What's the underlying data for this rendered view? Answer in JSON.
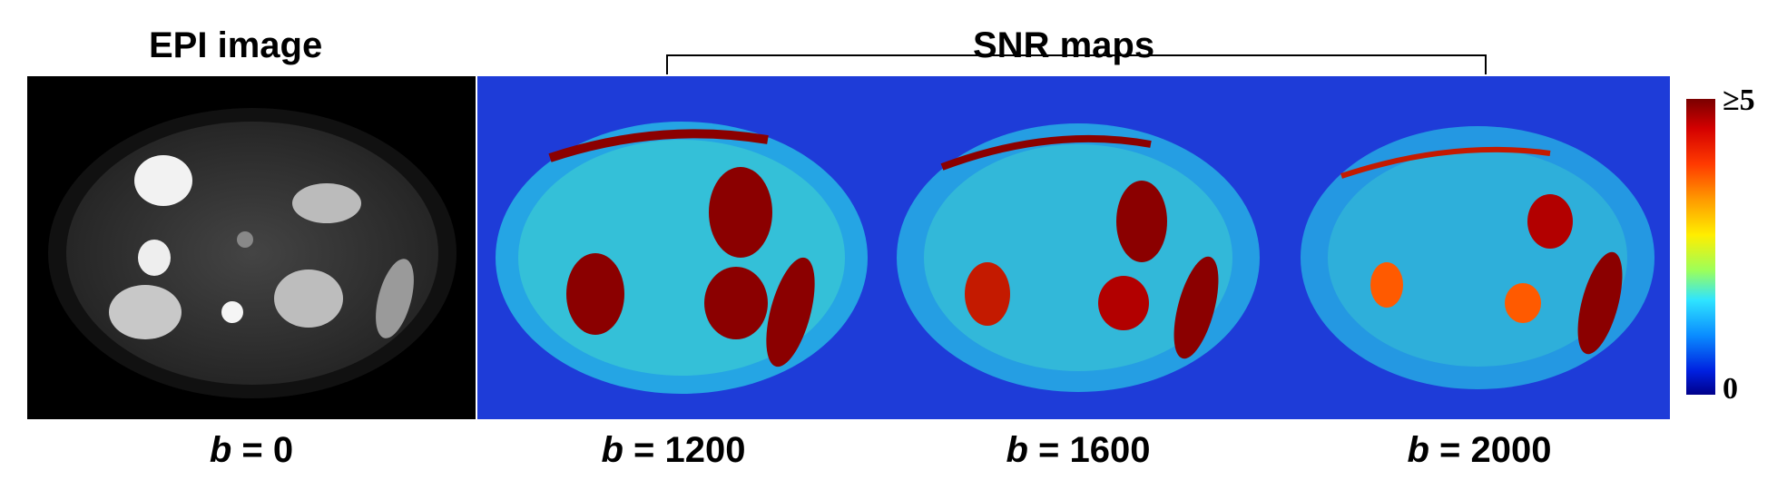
{
  "titles": {
    "epi": "EPI image",
    "snr": "SNR maps"
  },
  "panels": [
    {
      "id": "epi",
      "b_prefix": "b",
      "b_value": "= 0",
      "type": "grayscale"
    },
    {
      "id": "snr1200",
      "b_prefix": "b",
      "b_value": "= 1200",
      "type": "snr-map"
    },
    {
      "id": "snr1600",
      "b_prefix": "b",
      "b_value": "= 1600",
      "type": "snr-map"
    },
    {
      "id": "snr2000",
      "b_prefix": "b",
      "b_value": "= 2000",
      "type": "snr-map"
    }
  ],
  "colorbar": {
    "max_label": "≥5",
    "min_label": "0",
    "colors": [
      "#7a0000",
      "#ff3a00",
      "#ffee00",
      "#2fe4ff",
      "#0020e0",
      "#00008a"
    ]
  }
}
